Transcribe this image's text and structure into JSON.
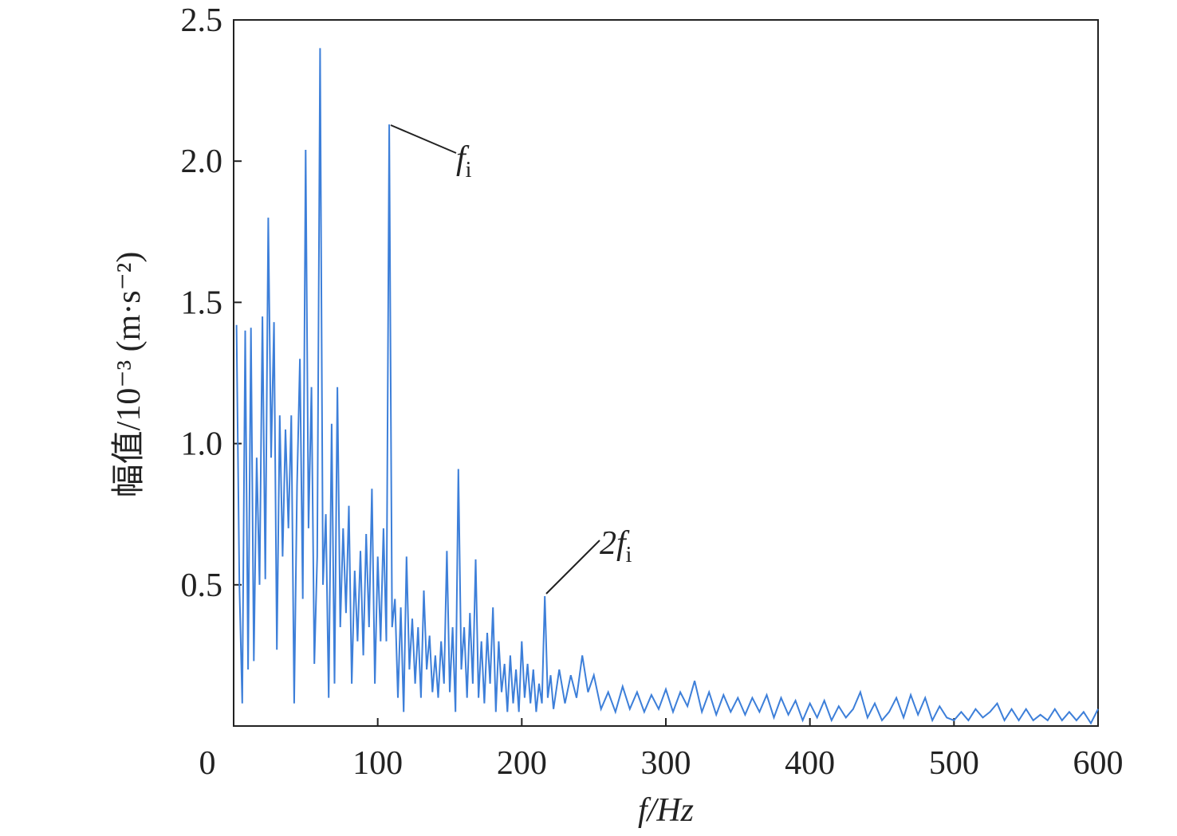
{
  "chart_data": {
    "type": "line",
    "x_label": "f/Hz",
    "y_label": "幅值/10⁻³ (m·s⁻²)",
    "annotations": [
      {
        "text": "f",
        "sub": "i"
      },
      {
        "text": "2f",
        "sub": "i"
      }
    ],
    "xlim": [
      0,
      600
    ],
    "xticks": [
      0,
      100,
      200,
      300,
      400,
      500,
      600
    ],
    "ylim": [
      0,
      2.5
    ],
    "yticks": [
      0.5,
      {
        "value": 1,
        "label": "1.0"
      },
      1.5,
      {
        "value": 2,
        "label": "2.0"
      },
      2.5
    ],
    "series": [
      {
        "color": "#3d7fd9",
        "x": [
          2,
          4,
          6,
          8,
          10,
          12,
          14,
          16,
          18,
          20,
          22,
          24,
          26,
          28,
          30,
          32,
          34,
          36,
          38,
          40,
          42,
          44,
          46,
          48,
          50,
          52,
          54,
          56,
          58,
          60,
          62,
          64,
          66,
          68,
          70,
          72,
          74,
          76,
          78,
          80,
          82,
          84,
          86,
          88,
          90,
          92,
          94,
          96,
          98,
          100,
          102,
          104,
          106,
          108,
          110,
          112,
          114,
          116,
          118,
          120,
          122,
          124,
          126,
          128,
          130,
          132,
          134,
          136,
          138,
          140,
          142,
          144,
          146,
          148,
          150,
          152,
          154,
          156,
          158,
          160,
          162,
          164,
          166,
          168,
          170,
          172,
          174,
          176,
          178,
          180,
          182,
          184,
          186,
          188,
          190,
          192,
          194,
          196,
          198,
          200,
          202,
          204,
          206,
          208,
          210,
          212,
          214,
          216,
          218,
          220,
          222,
          226,
          230,
          234,
          238,
          242,
          246,
          250,
          255,
          260,
          265,
          270,
          275,
          280,
          285,
          290,
          295,
          300,
          305,
          310,
          315,
          320,
          325,
          330,
          335,
          340,
          345,
          350,
          355,
          360,
          365,
          370,
          375,
          380,
          385,
          390,
          395,
          400,
          405,
          410,
          415,
          420,
          425,
          430,
          435,
          440,
          445,
          450,
          455,
          460,
          465,
          470,
          475,
          480,
          485,
          490,
          495,
          500,
          505,
          510,
          515,
          520,
          525,
          530,
          535,
          540,
          545,
          550,
          555,
          560,
          565,
          570,
          575,
          580,
          585,
          590,
          595,
          600
        ],
        "values": [
          1.42,
          0.5,
          0.08,
          1.4,
          0.2,
          1.41,
          0.23,
          0.95,
          0.5,
          1.45,
          0.52,
          1.8,
          0.95,
          1.43,
          0.27,
          1.1,
          0.6,
          1.05,
          0.7,
          1.1,
          0.08,
          0.85,
          1.3,
          0.45,
          2.04,
          0.7,
          1.2,
          0.22,
          0.6,
          2.4,
          0.5,
          0.75,
          0.1,
          1.07,
          0.15,
          1.2,
          0.35,
          0.7,
          0.4,
          0.78,
          0.15,
          0.55,
          0.3,
          0.62,
          0.25,
          0.68,
          0.35,
          0.84,
          0.15,
          0.6,
          0.3,
          0.7,
          0.3,
          2.13,
          0.35,
          0.45,
          0.1,
          0.42,
          0.05,
          0.6,
          0.2,
          0.38,
          0.15,
          0.35,
          0.1,
          0.48,
          0.2,
          0.32,
          0.12,
          0.25,
          0.1,
          0.3,
          0.15,
          0.62,
          0.12,
          0.35,
          0.05,
          0.91,
          0.2,
          0.35,
          0.1,
          0.4,
          0.15,
          0.59,
          0.1,
          0.3,
          0.08,
          0.33,
          0.15,
          0.42,
          0.05,
          0.3,
          0.12,
          0.22,
          0.05,
          0.25,
          0.08,
          0.2,
          0.05,
          0.3,
          0.1,
          0.22,
          0.08,
          0.2,
          0.05,
          0.15,
          0.08,
          0.46,
          0.1,
          0.18,
          0.06,
          0.2,
          0.08,
          0.18,
          0.1,
          0.25,
          0.12,
          0.18,
          0.06,
          0.12,
          0.05,
          0.14,
          0.06,
          0.12,
          0.05,
          0.11,
          0.06,
          0.13,
          0.05,
          0.12,
          0.07,
          0.16,
          0.05,
          0.12,
          0.04,
          0.11,
          0.05,
          0.1,
          0.04,
          0.1,
          0.05,
          0.11,
          0.03,
          0.1,
          0.04,
          0.09,
          0.02,
          0.08,
          0.03,
          0.09,
          0.02,
          0.07,
          0.03,
          0.06,
          0.12,
          0.03,
          0.08,
          0.02,
          0.05,
          0.1,
          0.03,
          0.11,
          0.04,
          0.1,
          0.02,
          0.07,
          0.03,
          0.02,
          0.05,
          0.02,
          0.06,
          0.03,
          0.05,
          0.08,
          0.02,
          0.06,
          0.02,
          0.06,
          0.02,
          0.04,
          0.02,
          0.06,
          0.02,
          0.05,
          0.02,
          0.05,
          0.01,
          0.06
        ]
      }
    ]
  }
}
